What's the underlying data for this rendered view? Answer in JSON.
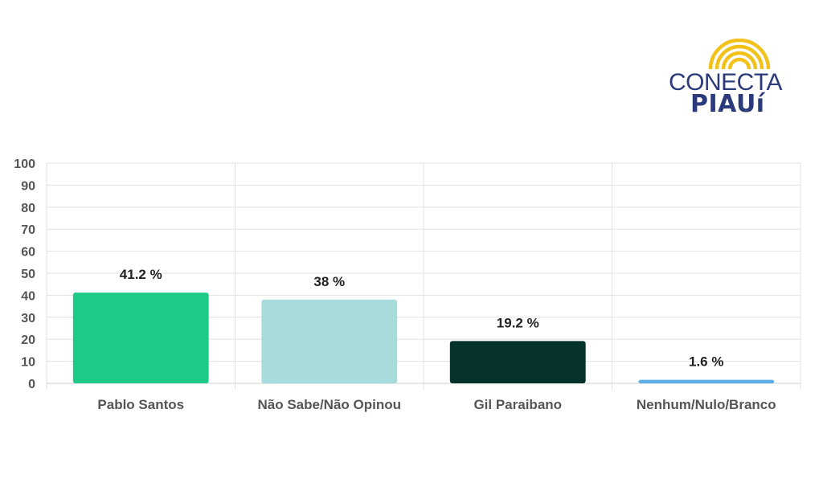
{
  "logo": {
    "line1": "CONECTA",
    "line2": "PIAUí",
    "colors": {
      "text": "#2b3a7a",
      "arcs": "#f2c21b"
    }
  },
  "chart_data": {
    "type": "bar",
    "categories": [
      "Pablo Santos",
      "Não Sabe/Não Opinou",
      "Gil Paraibano",
      "Nenhum/Nulo/Branco"
    ],
    "values": [
      41.2,
      38,
      19.2,
      1.6
    ],
    "data_labels": [
      "41.2 %",
      "38 %",
      "19.2 %",
      "1.6 %"
    ],
    "bar_colors": [
      "#1dca87",
      "#a8dcdc",
      "#05322b",
      "#5aaee8"
    ],
    "ylim": [
      0,
      100
    ],
    "yticks": [
      0,
      10,
      20,
      30,
      40,
      50,
      60,
      70,
      80,
      90,
      100
    ],
    "grid": true,
    "title": "",
    "xlabel": "",
    "ylabel": ""
  }
}
